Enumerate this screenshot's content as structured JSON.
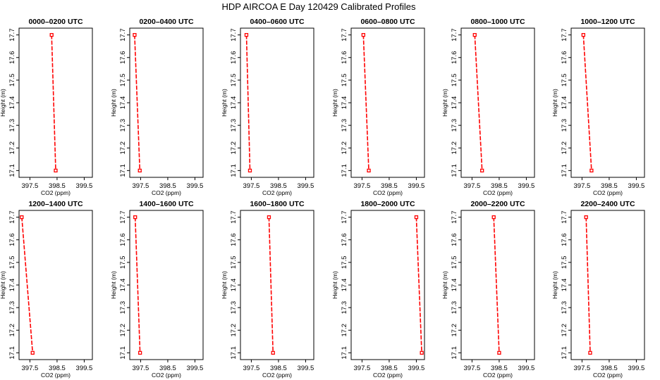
{
  "title": "HDP AIRCOA E  Day 120429  Calibrated Profiles",
  "chart_data": [
    {
      "type": "line",
      "title": "0000–0200 UTC",
      "xlabel": "CO2 (ppm)",
      "ylabel": "Height (m)",
      "xlim": [
        397.1,
        399.8
      ],
      "ylim": [
        17.07,
        17.73
      ],
      "xticks": [
        "397.5",
        "398.5",
        "399.5"
      ],
      "yticks": [
        "17.1",
        "17.2",
        "17.3",
        "17.4",
        "17.5",
        "17.6",
        "17.7"
      ],
      "series": [
        {
          "x": [
            398.3,
            398.45
          ],
          "y": [
            17.7,
            17.1
          ]
        }
      ]
    },
    {
      "type": "line",
      "title": "0200–0400 UTC",
      "xlabel": "CO2 (ppm)",
      "ylabel": "Height (m)",
      "xlim": [
        397.1,
        399.8
      ],
      "ylim": [
        17.07,
        17.73
      ],
      "xticks": [
        "397.5",
        "398.5",
        "399.5"
      ],
      "yticks": [
        "17.1",
        "17.2",
        "17.3",
        "17.4",
        "17.5",
        "17.6",
        "17.7"
      ],
      "series": [
        {
          "x": [
            397.28,
            397.47
          ],
          "y": [
            17.7,
            17.1
          ]
        }
      ]
    },
    {
      "type": "line",
      "title": "0400–0600 UTC",
      "xlabel": "CO2 (ppm)",
      "ylabel": "Height (m)",
      "xlim": [
        397.1,
        399.8
      ],
      "ylim": [
        17.07,
        17.73
      ],
      "xticks": [
        "397.5",
        "398.5",
        "399.5"
      ],
      "yticks": [
        "17.1",
        "17.2",
        "17.3",
        "17.4",
        "17.5",
        "17.6",
        "17.7"
      ],
      "series": [
        {
          "x": [
            397.32,
            397.45
          ],
          "y": [
            17.7,
            17.1
          ]
        }
      ]
    },
    {
      "type": "line",
      "title": "0600–0800 UTC",
      "xlabel": "CO2 (ppm)",
      "ylabel": "Height (m)",
      "xlim": [
        397.1,
        399.8
      ],
      "ylim": [
        17.07,
        17.73
      ],
      "xticks": [
        "397.5",
        "398.5",
        "399.5"
      ],
      "yticks": [
        "17.1",
        "17.2",
        "17.3",
        "17.4",
        "17.5",
        "17.6",
        "17.7"
      ],
      "series": [
        {
          "x": [
            397.55,
            397.75
          ],
          "y": [
            17.7,
            17.1
          ]
        }
      ]
    },
    {
      "type": "line",
      "title": "0800–1000 UTC",
      "xlabel": "CO2 (ppm)",
      "ylabel": "Height (m)",
      "xlim": [
        397.1,
        399.8
      ],
      "ylim": [
        17.07,
        17.73
      ],
      "xticks": [
        "397.5",
        "398.5",
        "399.5"
      ],
      "yticks": [
        "17.1",
        "17.2",
        "17.3",
        "17.4",
        "17.5",
        "17.6",
        "17.7"
      ],
      "series": [
        {
          "x": [
            397.6,
            397.87
          ],
          "y": [
            17.7,
            17.1
          ]
        }
      ]
    },
    {
      "type": "line",
      "title": "1000–1200 UTC",
      "xlabel": "CO2 (ppm)",
      "ylabel": "Height (m)",
      "xlim": [
        397.1,
        399.8
      ],
      "ylim": [
        17.07,
        17.73
      ],
      "xticks": [
        "397.5",
        "398.5",
        "399.5"
      ],
      "yticks": [
        "17.1",
        "17.2",
        "17.3",
        "17.4",
        "17.5",
        "17.6",
        "17.7"
      ],
      "series": [
        {
          "x": [
            397.55,
            397.85
          ],
          "y": [
            17.7,
            17.1
          ]
        }
      ]
    },
    {
      "type": "line",
      "title": "1200–1400 UTC",
      "xlabel": "CO2 (ppm)",
      "ylabel": "Height (m)",
      "xlim": [
        397.1,
        399.8
      ],
      "ylim": [
        17.07,
        17.73
      ],
      "xticks": [
        "397.5",
        "398.5",
        "399.5"
      ],
      "yticks": [
        "17.1",
        "17.2",
        "17.3",
        "17.4",
        "17.5",
        "17.6",
        "17.7"
      ],
      "series": [
        {
          "x": [
            397.2,
            397.6
          ],
          "y": [
            17.7,
            17.1
          ]
        }
      ]
    },
    {
      "type": "line",
      "title": "1400–1600 UTC",
      "xlabel": "CO2 (ppm)",
      "ylabel": "Height (m)",
      "xlim": [
        397.1,
        399.8
      ],
      "ylim": [
        17.07,
        17.73
      ],
      "xticks": [
        "397.5",
        "398.5",
        "399.5"
      ],
      "yticks": [
        "17.1",
        "17.2",
        "17.3",
        "17.4",
        "17.5",
        "17.6",
        "17.7"
      ],
      "series": [
        {
          "x": [
            397.3,
            397.48
          ],
          "y": [
            17.7,
            17.1
          ]
        }
      ]
    },
    {
      "type": "line",
      "title": "1600–1800 UTC",
      "xlabel": "CO2 (ppm)",
      "ylabel": "Height (m)",
      "xlim": [
        397.1,
        399.8
      ],
      "ylim": [
        17.07,
        17.73
      ],
      "xticks": [
        "397.5",
        "398.5",
        "399.5"
      ],
      "yticks": [
        "17.1",
        "17.2",
        "17.3",
        "17.4",
        "17.5",
        "17.6",
        "17.7"
      ],
      "series": [
        {
          "x": [
            398.15,
            398.3
          ],
          "y": [
            17.7,
            17.1
          ]
        }
      ]
    },
    {
      "type": "line",
      "title": "1800–2000 UTC",
      "xlabel": "CO2 (ppm)",
      "ylabel": "Height (m)",
      "xlim": [
        397.1,
        399.8
      ],
      "ylim": [
        17.07,
        17.73
      ],
      "xticks": [
        "397.5",
        "398.5",
        "399.5"
      ],
      "yticks": [
        "17.1",
        "17.2",
        "17.3",
        "17.4",
        "17.5",
        "17.6",
        "17.7"
      ],
      "series": [
        {
          "x": [
            399.5,
            399.7
          ],
          "y": [
            17.7,
            17.1
          ]
        }
      ]
    },
    {
      "type": "line",
      "title": "2000–2200 UTC",
      "xlabel": "CO2 (ppm)",
      "ylabel": "Height (m)",
      "xlim": [
        397.1,
        399.8
      ],
      "ylim": [
        17.07,
        17.73
      ],
      "xticks": [
        "397.5",
        "398.5",
        "399.5"
      ],
      "yticks": [
        "17.1",
        "17.2",
        "17.3",
        "17.4",
        "17.5",
        "17.6",
        "17.7"
      ],
      "series": [
        {
          "x": [
            398.3,
            398.5
          ],
          "y": [
            17.7,
            17.1
          ]
        }
      ]
    },
    {
      "type": "line",
      "title": "2200–2400 UTC",
      "xlabel": "CO2 (ppm)",
      "ylabel": "Height (m)",
      "xlim": [
        397.1,
        399.8
      ],
      "ylim": [
        17.07,
        17.73
      ],
      "xticks": [
        "397.5",
        "398.5",
        "399.5"
      ],
      "yticks": [
        "17.1",
        "17.2",
        "17.3",
        "17.4",
        "17.5",
        "17.6",
        "17.7"
      ],
      "series": [
        {
          "x": [
            397.65,
            397.8
          ],
          "y": [
            17.7,
            17.1
          ]
        }
      ]
    }
  ],
  "colors": {
    "line": "#ff0000",
    "marker": "#ff0000",
    "axes": "#000000",
    "background": "#ffffff"
  },
  "grid": false,
  "legend": "none"
}
